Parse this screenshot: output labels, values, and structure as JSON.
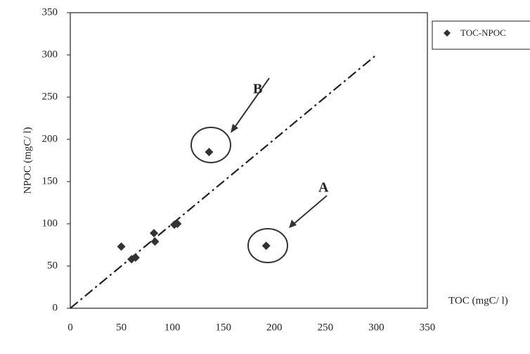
{
  "chart_data": {
    "type": "scatter",
    "series": [
      {
        "name": "TOC-NPOC",
        "color": "#333333",
        "x": [
          50,
          60,
          64,
          82,
          83,
          102,
          105,
          136,
          192
        ],
        "values": [
          73,
          58,
          60,
          89,
          79,
          99,
          100,
          185,
          74
        ]
      }
    ],
    "fit_line": {
      "x": [
        0,
        300
      ],
      "values": [
        0,
        300
      ],
      "color": "#222222"
    },
    "xlabel": "TOC (mgC/ l)",
    "ylabel": "NPOC (mgC/ l)",
    "annotations": [
      "A",
      "B"
    ],
    "xlim": [
      0,
      350
    ],
    "xticks": [
      0,
      50,
      100,
      150,
      200,
      250,
      300,
      350
    ],
    "ylim": [
      0,
      350
    ],
    "yticks": [
      0,
      50,
      100,
      150,
      200,
      250,
      300,
      350
    ],
    "grid": false
  }
}
